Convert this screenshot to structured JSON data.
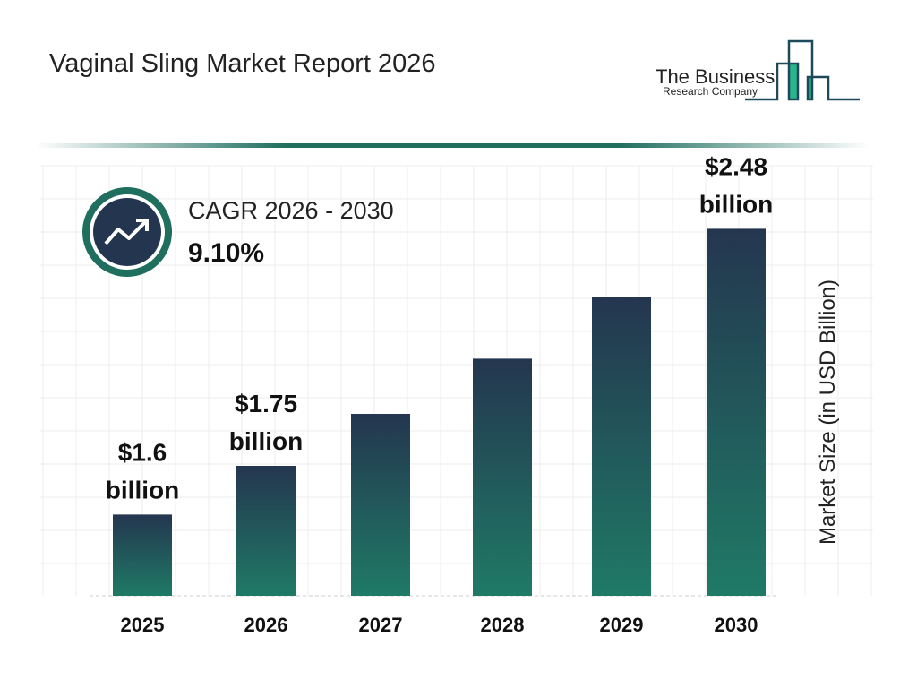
{
  "title": "Vaginal Sling Market Report 2026",
  "logo": {
    "line1": "The Business",
    "line2": "Research Company"
  },
  "cagr": {
    "label": "CAGR 2026 - 2030",
    "value": "9.10%",
    "icon": "trend-up-icon"
  },
  "colors": {
    "bar_top": "#24364f",
    "bar_bottom": "#1f7a66",
    "accent": "#1f6e5e"
  },
  "chart_data": {
    "type": "bar",
    "title": "Vaginal Sling Market Report 2026",
    "ylabel": "Market Size (in USD Billion)",
    "categories": [
      "2025",
      "2026",
      "2027",
      "2028",
      "2029",
      "2030"
    ],
    "values": [
      1.6,
      1.75,
      1.91,
      2.08,
      2.27,
      2.48
    ],
    "data_labels": [
      "$1.6 billion",
      "$1.75 billion",
      "",
      "",
      "",
      "$2.48 billion"
    ],
    "ylim": [
      1.35,
      2.55
    ],
    "grid": true
  }
}
